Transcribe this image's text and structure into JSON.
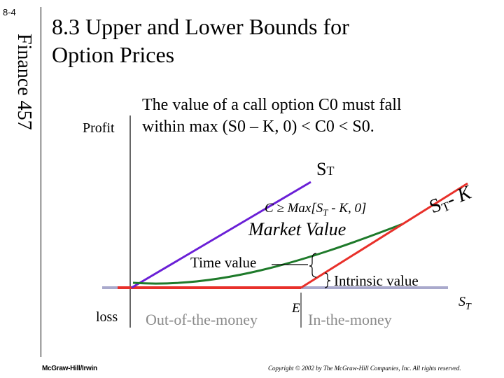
{
  "slide": {
    "number": "8-4",
    "side_label": "Finance 457",
    "title": "8.3 Upper and Lower Bounds for Option Prices",
    "intro_line1": "The value of a call option C0 must fall",
    "intro_line2": "within max (S0 – K, 0) < C0 < S0."
  },
  "diagram": {
    "y_axis": {
      "top_label": "Profit",
      "bottom_label": "loss"
    },
    "upper_bound": {
      "label": "S",
      "sub": "T"
    },
    "intrinsic_line": {
      "label_s": "S",
      "sub": "T",
      "suffix": "- K"
    },
    "max_formula": {
      "prefix": "C ≥ Max[S",
      "sub": "T",
      "suffix": " - K, 0]"
    },
    "market_value": "Market Value",
    "time_value": "Time value",
    "intrinsic_value": "Intrinsic value",
    "strike": "E",
    "out_of_money": "Out-of-the-money",
    "in_money": "In-the-money",
    "x_axis": {
      "label": "S",
      "sub": "T"
    }
  },
  "colors": {
    "axis": "#a9a9cc",
    "upper_bound": "#6a1fd6",
    "market_value": "#1e7a2a",
    "intrinsic": "#e8302a",
    "region_text": "#8a8a8a"
  },
  "footer": {
    "publisher": "McGraw-Hill/Irwin",
    "copyright": "Copyright © 2002 by The McGraw-Hill Companies, Inc. All rights reserved."
  }
}
